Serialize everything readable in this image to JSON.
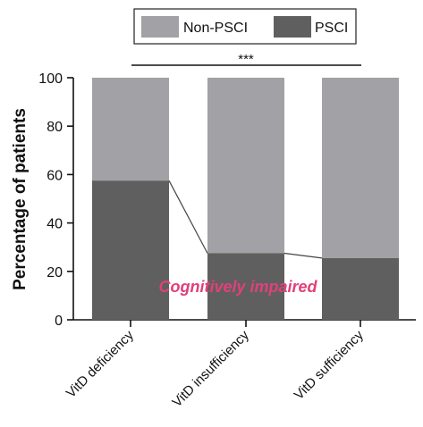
{
  "chart_data": {
    "type": "bar",
    "stacked": true,
    "percent": true,
    "categories": [
      "VitD deficiency",
      "VitD insufficiency",
      "VitD sufficiency"
    ],
    "series": [
      {
        "name": "PSCI",
        "values": [
          57.5,
          27.5,
          25.5
        ],
        "color": "#5f5f5f"
      },
      {
        "name": "Non-PSCI",
        "values": [
          42.5,
          72.5,
          74.5
        ],
        "color": "#a2a2a6"
      }
    ],
    "ylabel": "Percentage of patients",
    "xlabel": "",
    "ylim": [
      0,
      100
    ],
    "yticks": [
      0,
      20,
      40,
      60,
      80,
      100
    ],
    "legend": {
      "placement": "top",
      "order": [
        "Non-PSCI",
        "PSCI"
      ]
    },
    "trend_line": {
      "series": "PSCI",
      "color": "#444444"
    },
    "significance": {
      "label": "***",
      "from": 0,
      "to": 2
    },
    "annotation": {
      "text": "Cognitively impaired",
      "color": "#e0407a"
    },
    "grid": false
  }
}
